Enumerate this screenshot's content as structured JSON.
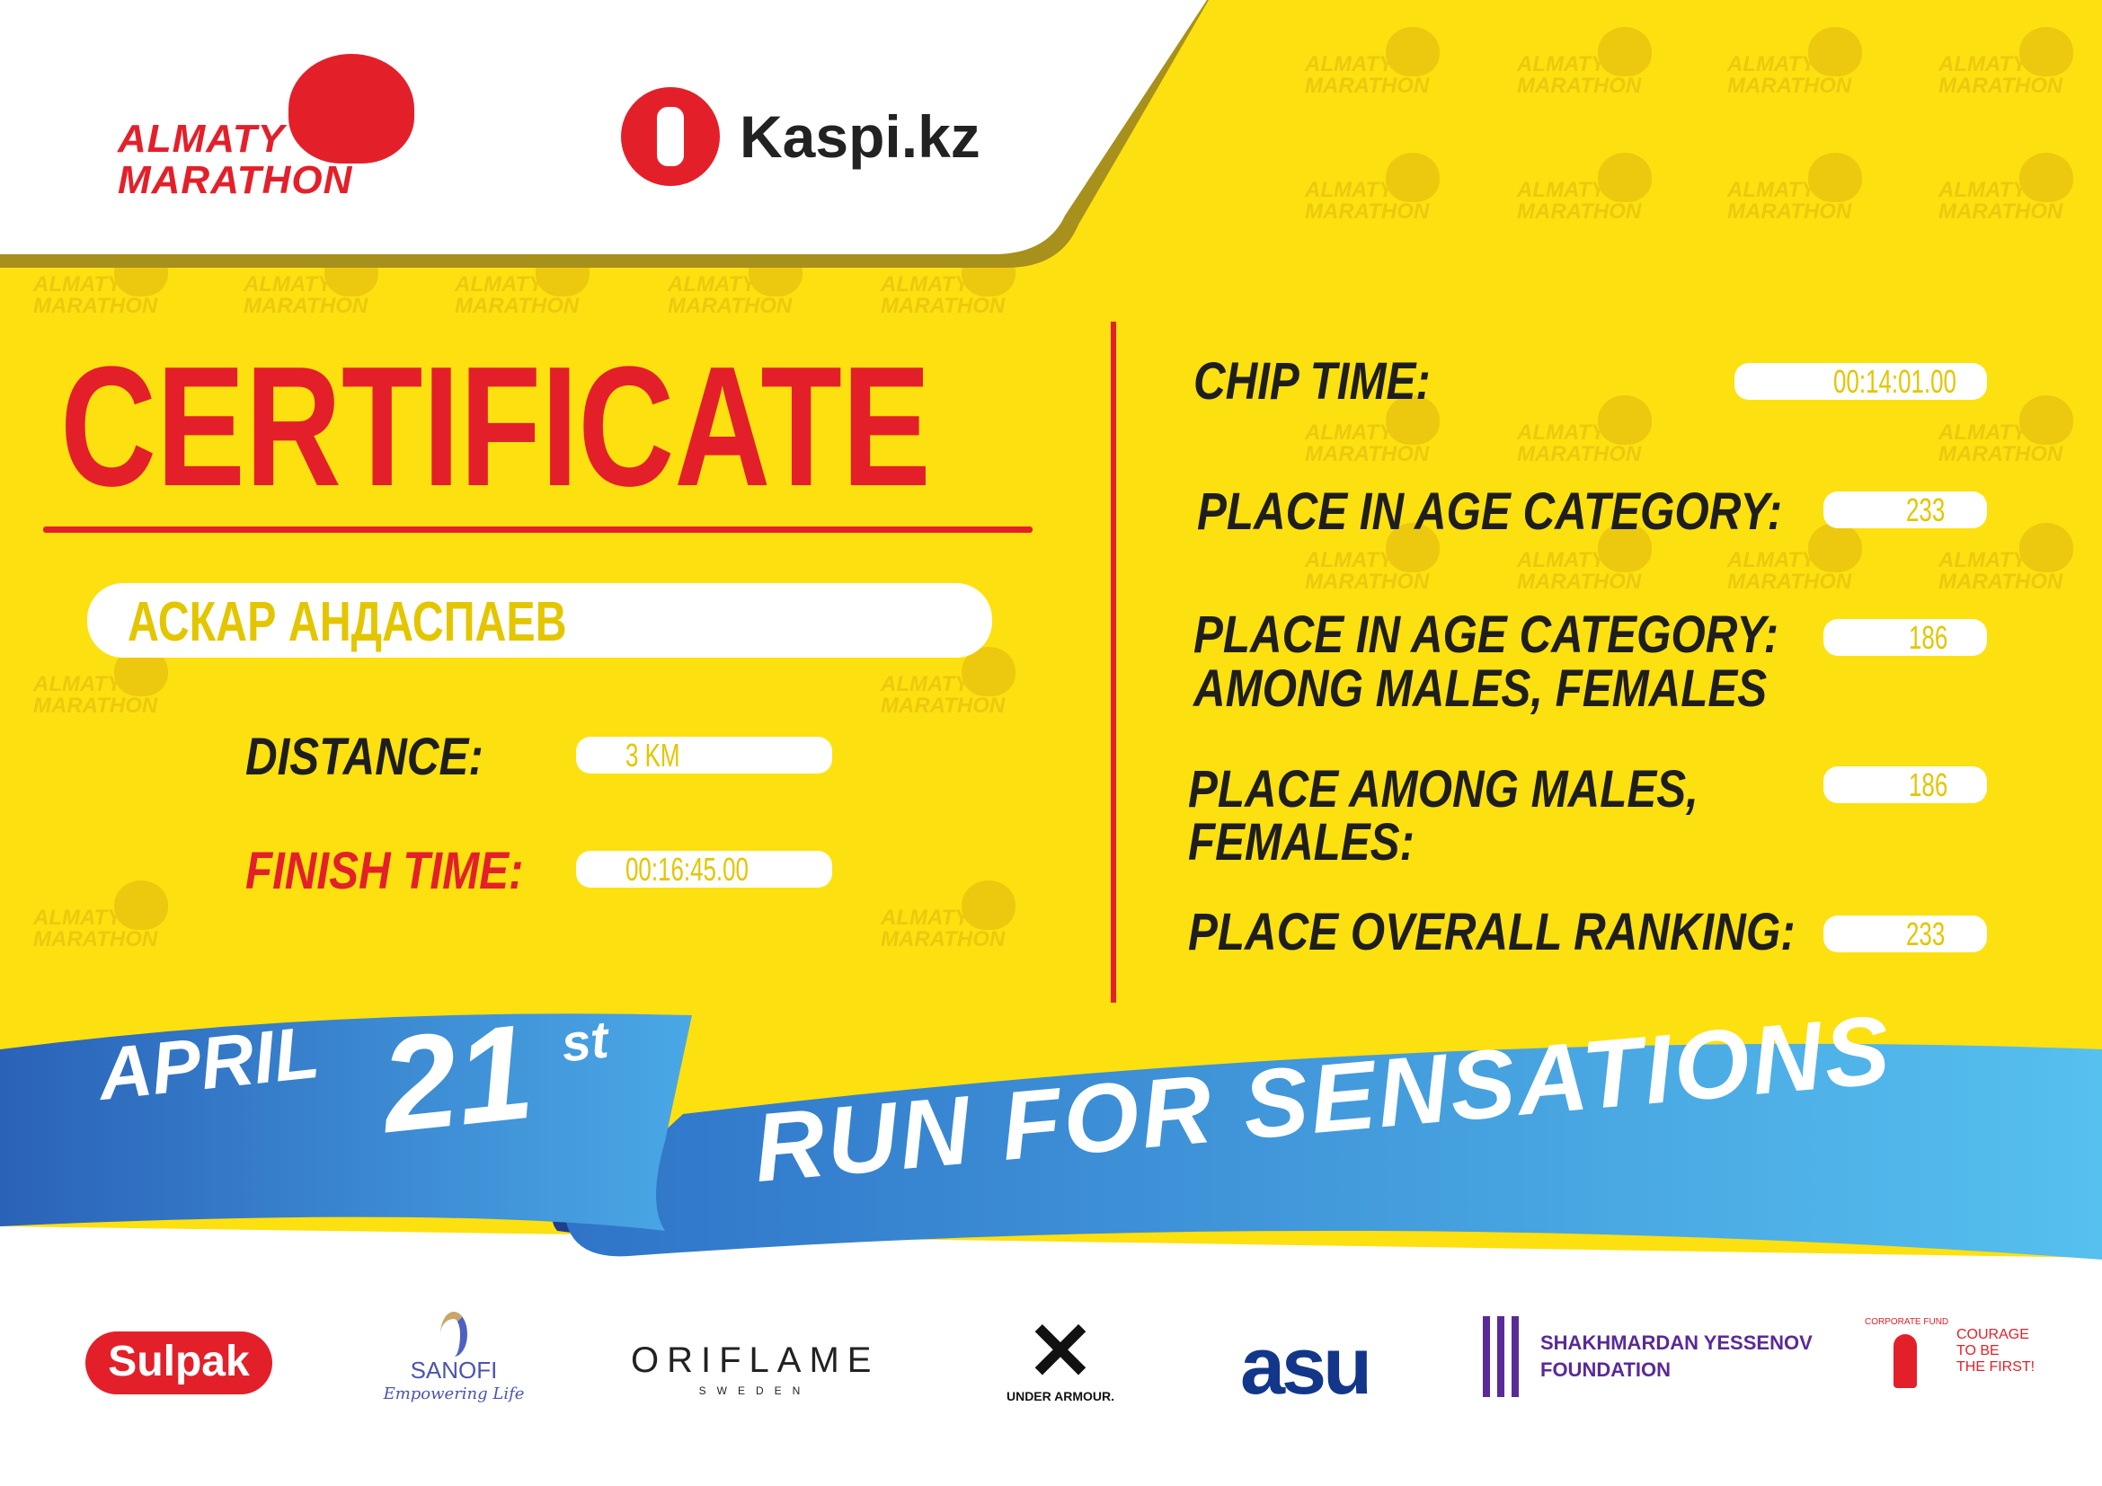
{
  "watermark": {
    "line1": "ALMATY",
    "line2": "MARATHON"
  },
  "header": {
    "almaty_logo": {
      "line1": "ALMATY",
      "line2": "MARATHON"
    },
    "kaspi_logo": "Kaspi.kz"
  },
  "certificate": {
    "title": "CERTIFICATE",
    "participant_name": "АСКАР АНДАСПАЕВ"
  },
  "left_results": {
    "distance_label": "DISTANCE:",
    "distance_value": "3 KM",
    "finish_label": "FINISH TIME:",
    "finish_value": "00:16:45.00"
  },
  "right_results": {
    "chip_label": "CHIP TIME:",
    "chip_value": "00:14:01.00",
    "age_label": "PLACE IN AGE CATEGORY:",
    "age_value": "233",
    "age_gender_label_1": "PLACE IN AGE CATEGORY:",
    "age_gender_label_2": "AMONG MALES, FEMALES",
    "age_gender_value": "186",
    "gender_label_1": "PLACE AMONG MALES,",
    "gender_label_2": "FEMALES:",
    "gender_value": "186",
    "overall_label": "PLACE OVERALL RANKING:",
    "overall_value": "233"
  },
  "ribbon": {
    "month": "APRIL",
    "day": "21",
    "suffix": "st",
    "slogan": "RUN FOR SENSATIONS"
  },
  "sponsors": {
    "sulpak": "Sulpak",
    "sanofi": "SANOFI",
    "sanofi_tag": "Empowering Life",
    "oriflame": "ORIFLAME",
    "oriflame_sub": "SWEDEN",
    "under_armour": "UNDER ARMOUR.",
    "asu": "asu",
    "yessenov_1": "SHAKHMARDAN YESSENOV",
    "yessenov_2": "FOUNDATION",
    "courage_1": "COURAGE",
    "courage_2": "TO BE",
    "courage_3": "THE FIRST!",
    "courage_arc": "CORPORATE FUND"
  },
  "colors": {
    "background": "#fde010",
    "accent_red": "#e3202a",
    "value_text": "#e3c600",
    "ribbon_blue": "#2f7fd0",
    "ribbon_light": "#56c0ef"
  }
}
